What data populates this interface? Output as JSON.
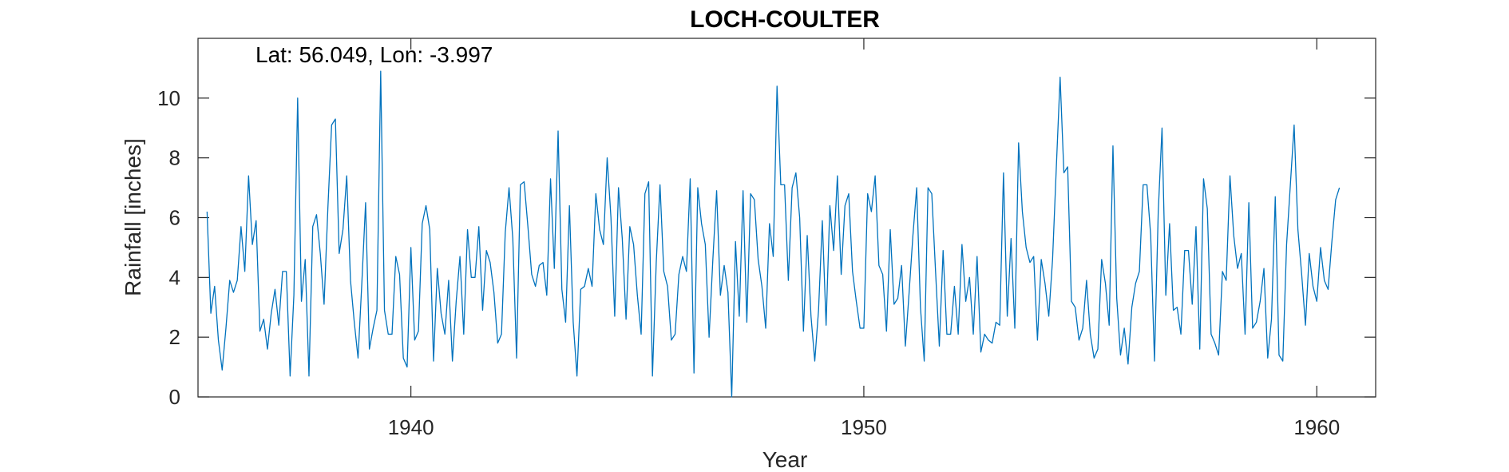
{
  "chart_data": {
    "type": "line",
    "title": "LOCH-COULTER",
    "annotation": "Lat: 56.049, Lon: -3.997",
    "xlabel": "Year",
    "ylabel": "Rainfall [inches]",
    "xlim": [
      1935.3,
      1961.3
    ],
    "ylim": [
      0,
      12
    ],
    "xticks": [
      1940,
      1950,
      1960
    ],
    "xtick_labels": [
      "1940",
      "1950",
      "1960"
    ],
    "yticks": [
      0,
      2,
      4,
      6,
      8,
      10
    ],
    "ytick_labels": [
      "0",
      "2",
      "4",
      "6",
      "8",
      "10"
    ],
    "grid": false,
    "line_color": "#0072BD",
    "x_start": 1935.5,
    "x_step": 0.0833333,
    "series": [
      {
        "values": [
          6.2,
          2.8,
          3.7,
          1.9,
          0.9,
          2.3,
          3.9,
          3.5,
          3.9,
          5.7,
          4.2,
          7.4,
          5.1,
          5.9,
          2.2,
          2.6,
          1.6,
          2.8,
          3.6,
          2.4,
          4.2,
          4.2,
          0.7,
          3.4,
          10.0,
          3.2,
          4.6,
          0.7,
          5.7,
          6.1,
          4.8,
          3.1,
          6.3,
          9.1,
          9.3,
          4.8,
          5.6,
          7.4,
          3.9,
          2.5,
          1.3,
          3.8,
          6.5,
          1.6,
          2.3,
          2.9,
          10.9,
          2.9,
          2.1,
          2.1,
          4.7,
          4.1,
          1.3,
          1.0,
          5.0,
          1.9,
          2.2,
          5.8,
          6.4,
          5.6,
          1.2,
          4.3,
          2.8,
          2.1,
          3.9,
          1.2,
          3.2,
          4.7,
          2.1,
          5.6,
          4.0,
          4.0,
          5.7,
          2.9,
          4.9,
          4.5,
          3.5,
          1.8,
          2.1,
          5.5,
          7.0,
          5.3,
          1.3,
          7.1,
          7.2,
          5.7,
          4.1,
          3.7,
          4.4,
          4.5,
          3.4,
          7.3,
          4.3,
          8.9,
          3.6,
          2.5,
          6.4,
          2.5,
          0.7,
          3.6,
          3.7,
          4.3,
          3.7,
          6.8,
          5.6,
          5.1,
          8.0,
          6.0,
          2.7,
          7.0,
          5.3,
          2.6,
          5.7,
          5.1,
          3.4,
          2.1,
          6.8,
          7.2,
          0.7,
          4.5,
          7.1,
          4.2,
          3.7,
          1.9,
          2.1,
          4.1,
          4.7,
          4.2,
          7.3,
          0.8,
          7.0,
          5.8,
          5.1,
          2.0,
          4.6,
          6.9,
          3.4,
          4.4,
          3.5,
          0.0,
          5.2,
          2.7,
          6.9,
          2.5,
          6.8,
          6.6,
          4.6,
          3.7,
          2.3,
          5.8,
          4.7,
          10.4,
          7.1,
          7.1,
          3.9,
          7.0,
          7.5,
          6.0,
          2.2,
          5.4,
          2.7,
          1.2,
          2.9,
          5.9,
          2.4,
          6.4,
          4.9,
          7.4,
          4.1,
          6.4,
          6.8,
          4.2,
          3.2,
          2.3,
          2.3,
          6.8,
          6.2,
          7.4,
          4.4,
          4.1,
          2.2,
          5.6,
          3.1,
          3.3,
          4.4,
          1.7,
          3.5,
          5.4,
          7.0,
          3.0,
          1.2,
          7.0,
          6.8,
          4.2,
          1.7,
          4.9,
          2.1,
          2.1,
          3.7,
          2.1,
          5.1,
          3.2,
          4.0,
          2.1,
          4.7,
          1.5,
          2.1,
          1.9,
          1.8,
          2.5,
          2.4,
          7.5,
          2.7,
          5.3,
          2.3,
          8.5,
          6.2,
          5.0,
          4.5,
          4.7,
          1.9,
          4.6,
          3.8,
          2.7,
          4.6,
          7.7,
          10.7,
          7.5,
          7.7,
          3.2,
          3.0,
          1.9,
          2.3,
          3.9,
          2.1,
          1.3,
          1.6,
          4.6,
          3.8,
          2.4,
          8.4,
          3.3,
          1.4,
          2.3,
          1.1,
          3.0,
          3.8,
          4.2,
          7.1,
          7.1,
          5.4,
          1.2,
          6.2,
          9.0,
          3.4,
          5.8,
          2.9,
          3.0,
          2.1,
          4.9,
          4.9,
          3.1,
          5.7,
          1.6,
          7.3,
          6.3,
          2.1,
          1.8,
          1.4,
          4.2,
          3.9,
          7.4,
          5.4,
          4.3,
          4.8,
          2.1,
          6.5,
          2.3,
          2.5,
          3.2,
          4.3,
          1.3,
          2.6,
          6.7,
          1.4,
          1.2,
          5.1,
          7.1,
          9.1,
          5.6,
          4.1,
          2.4,
          4.8,
          3.7,
          3.2,
          5.0,
          3.9,
          3.6,
          5.2,
          6.6,
          7.0
        ]
      }
    ]
  }
}
